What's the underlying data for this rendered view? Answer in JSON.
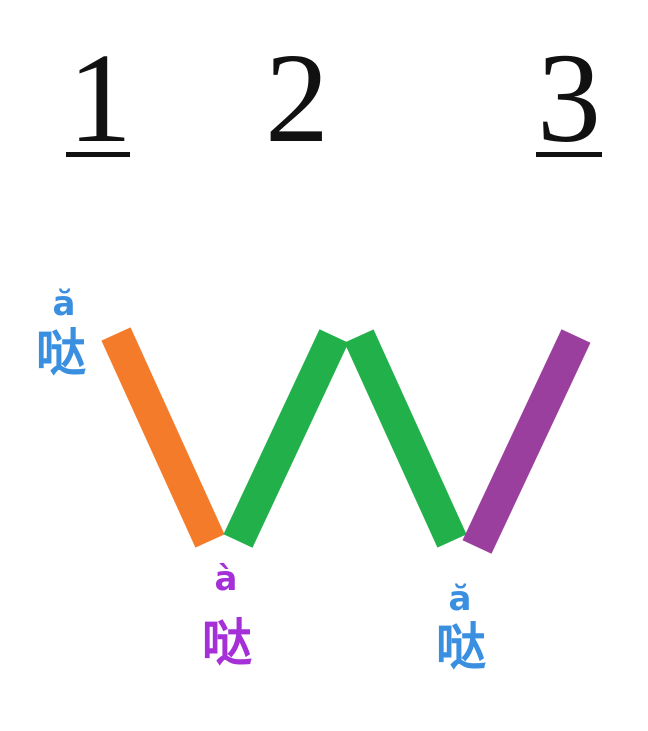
{
  "beats": [
    {
      "label": "1",
      "underlined": true
    },
    {
      "label": "2",
      "underlined": false
    },
    {
      "label": "3",
      "underlined": true
    }
  ],
  "syllables": [
    {
      "pinyin": "ă",
      "hanzi": "哒",
      "color": "#3a8fe0"
    },
    {
      "pinyin": "à",
      "hanzi": "哒",
      "color": "#a530d8"
    },
    {
      "pinyin": "ă",
      "hanzi": "哒",
      "color": "#3a8fe0"
    }
  ],
  "strokes": [
    {
      "name": "first-descent",
      "color": "#f47b2a"
    },
    {
      "name": "rise",
      "color": "#22b04b"
    },
    {
      "name": "second-descent",
      "color": "#22b04b"
    },
    {
      "name": "final-rise",
      "color": "#9b3f9e"
    }
  ]
}
